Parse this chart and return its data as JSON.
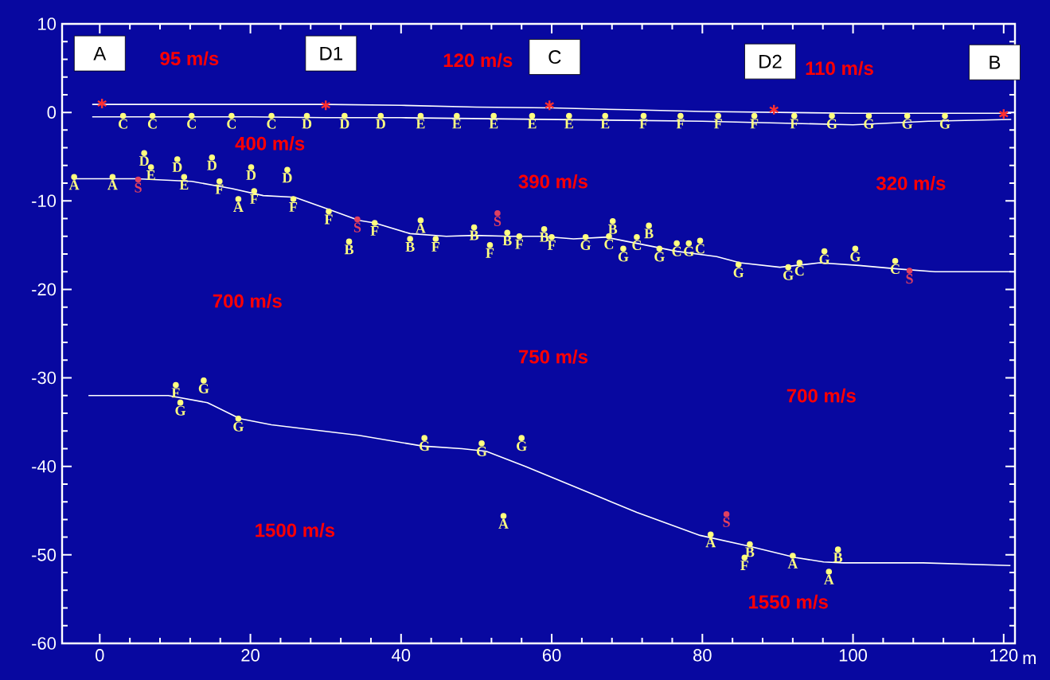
{
  "chart_data": {
    "type": "line",
    "xlabel": "m",
    "xlim": [
      -5,
      121.5
    ],
    "ylim": [
      -60,
      10
    ],
    "xticks": [
      0,
      20,
      40,
      60,
      80,
      100,
      120
    ],
    "yticks": [
      -60,
      -50,
      -40,
      -30,
      -20,
      -10,
      0,
      10
    ],
    "grid": false,
    "series": [
      {
        "color": "#ffffff",
        "marker": "none",
        "x": [
          -1,
          10,
          20,
          30,
          40,
          50,
          60,
          70,
          80,
          90,
          100,
          110,
          121
        ],
        "values": [
          0.9,
          0.9,
          0.9,
          0.9,
          0.8,
          0.6,
          0.5,
          0.3,
          0.1,
          0,
          -0.1,
          -0.1,
          -0.1
        ]
      },
      {
        "color": "#ffffff",
        "marker": "none",
        "x": [
          -1,
          10,
          20,
          30,
          40,
          50,
          60,
          70,
          80,
          90,
          100,
          110,
          121
        ],
        "values": [
          -0.5,
          -0.5,
          -0.5,
          -0.6,
          -0.6,
          -0.7,
          -0.8,
          -0.9,
          -1.0,
          -1.2,
          -1.4,
          -1.0,
          -0.8
        ]
      },
      {
        "color": "#ffffff",
        "marker": "none",
        "x": [
          -3.6,
          4.9,
          12.2,
          17.5,
          21.7,
          25.9,
          30.2,
          34.4,
          36.5,
          41.2,
          46.0,
          49.7,
          54.4,
          58.6,
          62.9,
          67.1,
          71.3,
          76.6,
          81.9,
          85.0,
          90.3,
          95.6,
          100.8,
          106.1,
          110.9,
          120.9
        ],
        "values": [
          -7.5,
          -7.5,
          -7.8,
          -8.6,
          -9.4,
          -9.6,
          -10.9,
          -12.2,
          -12.5,
          -13.7,
          -14.0,
          -13.9,
          -14.0,
          -14.0,
          -14.3,
          -14.1,
          -14.8,
          -15.7,
          -16.3,
          -17.0,
          -17.5,
          -17.0,
          -17.3,
          -17.7,
          -18.0,
          -18.0
        ]
      },
      {
        "color": "#ffffff",
        "marker": "none",
        "x": [
          -1.5,
          9.1,
          14.3,
          18.6,
          22.8,
          34.4,
          42.8,
          48.1,
          51.3,
          56.5,
          71.3,
          79.7,
          86.1,
          92.4,
          96.1,
          98.7,
          109.3,
          120.9
        ],
        "values": [
          -32.0,
          -32.0,
          -32.8,
          -34.6,
          -35.3,
          -36.5,
          -37.7,
          -38.0,
          -38.3,
          -40.0,
          -45.2,
          -47.8,
          -49.0,
          -50.3,
          -50.8,
          -50.9,
          -50.9,
          -51.2
        ]
      },
      {
        "type": "scatter",
        "color": "#ffff80",
        "marker": "circle",
        "x": [
          3.1,
          7,
          12.2,
          17.5,
          22.8,
          27.5,
          32.5,
          37.3,
          42.6,
          47.4,
          52.3,
          57.4,
          62.3,
          67.1,
          72.2,
          77.1,
          82.1,
          86.9,
          92.2,
          97.2,
          102.1,
          107.2,
          112.2
        ],
        "values": [
          -0.4,
          -0.4,
          -0.4,
          -0.4,
          -0.4,
          -0.4,
          -0.4,
          -0.4,
          -0.4,
          -0.4,
          -0.4,
          -0.4,
          -0.4,
          -0.4,
          -0.4,
          -0.4,
          -0.4,
          -0.4,
          -0.4,
          -0.4,
          -0.4,
          -0.4,
          -0.4
        ],
        "value_labels": [
          "C",
          "C",
          "C",
          "C",
          "C",
          "D",
          "D",
          "D",
          "E",
          "E",
          "E",
          "E",
          "E",
          "E",
          "F",
          "F",
          "F",
          "F",
          "F",
          "G",
          "G",
          "G",
          "G"
        ]
      },
      {
        "type": "scatter",
        "color": "#ffff80",
        "marker": "circle",
        "x": [
          -3.4,
          1.7,
          5.9,
          6.8,
          10.3,
          11.2,
          14.9,
          15.9,
          20.1,
          18.4,
          20.5,
          24.9,
          25.7,
          30.4,
          33.1,
          36.5,
          41.2,
          42.6,
          44.6,
          49.7,
          51.8,
          54.1,
          55.7,
          59.0,
          60.0,
          64.5,
          67.6,
          68.1,
          69.5,
          71.3,
          72.9,
          74.3,
          76.6,
          78.2,
          79.7,
          84.8,
          91.4,
          92.9,
          96.2,
          100.3,
          105.6
        ],
        "values": [
          -7.3,
          -7.3,
          -4.6,
          -6.2,
          -5.3,
          -7.3,
          -5.1,
          -7.8,
          -6.2,
          -9.8,
          -8.9,
          -6.5,
          -9.8,
          -11.2,
          -14.6,
          -12.5,
          -14.3,
          -12.2,
          -14.3,
          -13.0,
          -15.0,
          -13.6,
          -14.0,
          -13.2,
          -14.1,
          -14.1,
          -14.0,
          -12.3,
          -15.4,
          -14.1,
          -12.8,
          -15.4,
          -14.8,
          -14.8,
          -14.5,
          -17.2,
          -17.5,
          -17.0,
          -15.7,
          -15.4,
          -16.8
        ],
        "value_labels": [
          "A",
          "A",
          "D",
          "E",
          "D",
          "E",
          "D",
          "F",
          "D",
          "A",
          "F",
          "D",
          "F",
          "F",
          "B",
          "F",
          "B",
          "A",
          "F",
          "B",
          "F",
          "B",
          "F",
          "B",
          "F",
          "G",
          "C",
          "B",
          "G",
          "C",
          "B",
          "G",
          "C",
          "G",
          "C",
          "G",
          "G",
          "C",
          "G",
          "G",
          "C"
        ]
      },
      {
        "type": "scatter",
        "color": "#ffff80",
        "marker": "circle",
        "x": [
          10.1,
          10.7,
          13.8,
          18.4,
          43.1,
          50.7,
          56.0,
          53.6,
          81.1,
          86.3,
          85.6,
          92.0,
          98.0,
          96.8
        ],
        "values": [
          -30.8,
          -32.8,
          -30.3,
          -34.6,
          -36.8,
          -37.4,
          -36.8,
          -45.6,
          -47.7,
          -48.8,
          -50.3,
          -50.1,
          -49.4,
          -51.9
        ],
        "value_labels": [
          "F",
          "G",
          "G",
          "G",
          "G",
          "G",
          "G",
          "A",
          "A",
          "B",
          "F",
          "A",
          "B",
          "A"
        ]
      },
      {
        "type": "scatter",
        "color": "#e04060",
        "marker": "circle",
        "x": [
          5.1,
          34.2,
          52.8,
          107.5,
          83.2
        ],
        "values": [
          -7.6,
          -12.1,
          -11.4,
          -17.9,
          -45.4
        ],
        "value_labels": [
          "S",
          "S",
          "S",
          "S",
          "S"
        ]
      },
      {
        "type": "scatter",
        "color": "#ff3030",
        "marker": "cross",
        "x": [
          0.3,
          30,
          59.7,
          89.5,
          120
        ],
        "values": [
          1,
          0.8,
          0.8,
          0.3,
          -0.2
        ]
      }
    ],
    "annotations": [
      "95 m/s",
      "120 m/s",
      "110 m/s",
      "400 m/s",
      "390 m/s",
      "320 m/s",
      "700 m/s",
      "750 m/s",
      "700 m/s",
      "1500 m/s",
      "1550 m/s",
      {
        "text": "A",
        "x": 0,
        "y": 0.9
      },
      {
        "text": "D1",
        "x": 30.7,
        "y": 0.9
      },
      {
        "text": "C",
        "x": 60.4,
        "y": 0.5
      },
      {
        "text": "D2",
        "x": 89,
        "y": 0
      },
      {
        "text": "B",
        "x": 118.8,
        "y": -0.1
      }
    ]
  }
}
